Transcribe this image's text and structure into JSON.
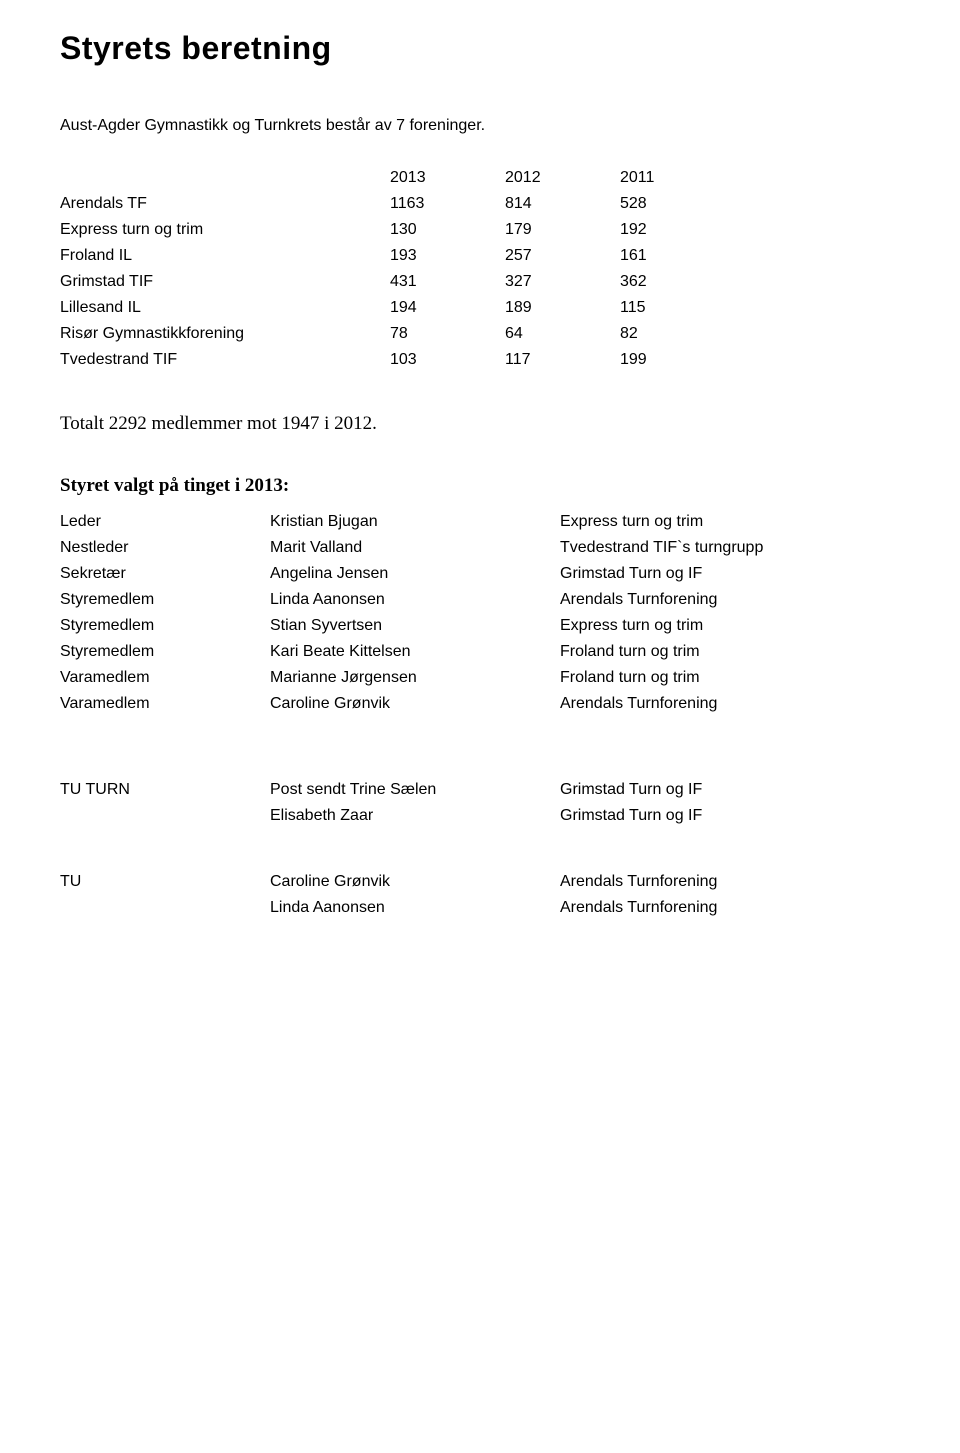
{
  "page": {
    "title": "Styrets beretning",
    "intro": "Aust-Agder Gymnastikk og Turnkrets består av 7 foreninger."
  },
  "membership_table": {
    "year_cols": [
      "2013",
      "2012",
      "2011"
    ],
    "rows": [
      {
        "name": "Arendals TF",
        "vals": [
          "1163",
          "814",
          "528"
        ]
      },
      {
        "name": "Express turn og trim",
        "vals": [
          "130",
          "179",
          "192"
        ]
      },
      {
        "name": "Froland IL",
        "vals": [
          "193",
          "257",
          "161"
        ]
      },
      {
        "name": "Grimstad TIF",
        "vals": [
          "431",
          "327",
          "362"
        ]
      },
      {
        "name": "Lillesand IL",
        "vals": [
          "194",
          "189",
          "115"
        ]
      },
      {
        "name": "Risør Gymnastikkforening",
        "vals": [
          "78",
          "64",
          "82"
        ]
      },
      {
        "name": "Tvedestrand TIF",
        "vals": [
          "103",
          "117",
          "199"
        ]
      }
    ]
  },
  "totals_line": "Totalt 2292 medlemmer mot 1947 i 2012.",
  "board": {
    "heading": "Styret valgt på tinget i 2013:",
    "rows": [
      {
        "role": "Leder",
        "name": "Kristian Bjugan",
        "org": "Express turn og trim"
      },
      {
        "role": "Nestleder",
        "name": "Marit Valland",
        "org": "Tvedestrand TIF`s turngrupp"
      },
      {
        "role": "Sekretær",
        "name": "Angelina Jensen",
        "org": "Grimstad Turn og IF"
      },
      {
        "role": "Styremedlem",
        "name": "Linda Aanonsen",
        "org": "Arendals Turnforening"
      },
      {
        "role": "Styremedlem",
        "name": "Stian Syvertsen",
        "org": "Express turn og trim"
      },
      {
        "role": "Styremedlem",
        "name": "Kari Beate Kittelsen",
        "org": "Froland turn og trim"
      },
      {
        "role": "Varamedlem",
        "name": "Marianne Jørgensen",
        "org": "Froland turn og trim"
      },
      {
        "role": "Varamedlem",
        "name": "Caroline Grønvik",
        "org": "Arendals Turnforening"
      }
    ]
  },
  "committees": {
    "tu_turn": {
      "label": "TU TURN",
      "rows": [
        {
          "name": "Post sendt Trine Sælen",
          "org": "Grimstad Turn og IF"
        },
        {
          "name": "Elisabeth Zaar",
          "org": "Grimstad Turn og IF"
        }
      ]
    },
    "tu": {
      "label": "TU",
      "rows": [
        {
          "name": "Caroline Grønvik",
          "org": "Arendals Turnforening"
        },
        {
          "name": "Linda Aanonsen",
          "org": "Arendals Turnforening"
        }
      ]
    }
  }
}
